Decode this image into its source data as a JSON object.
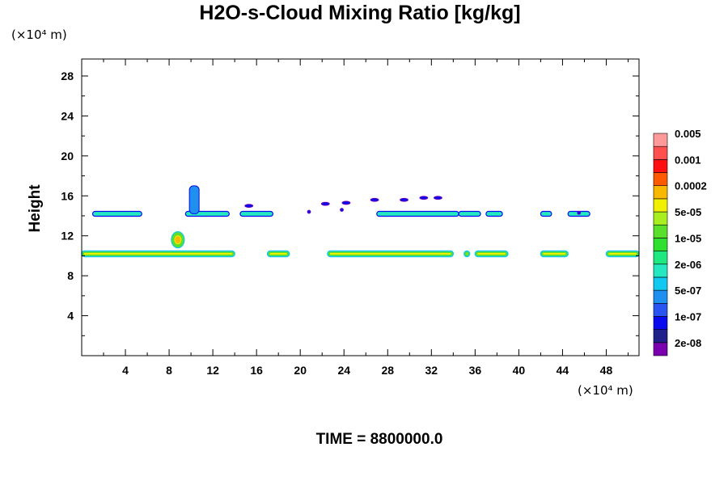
{
  "chart_data": {
    "type": "heatmap",
    "title": "H2O-s-Cloud Mixing Ratio [kg/kg]",
    "ylabel": "Height",
    "x_unit": "(×10⁴ m)",
    "y_unit": "(×10⁴ m)",
    "footer": "TIME = 8800000.0",
    "xlim": [
      0,
      51
    ],
    "ylim": [
      0,
      29.7
    ],
    "x_ticks": [
      4,
      8,
      12,
      16,
      20,
      24,
      28,
      32,
      36,
      40,
      44,
      48
    ],
    "y_ticks": [
      4,
      8,
      12,
      16,
      20,
      24,
      28
    ],
    "colorbar": {
      "colors": [
        "#7a00b0",
        "#20208a",
        "#0a0aee",
        "#2a55f0",
        "#1f8ff0",
        "#10c8f0",
        "#25e8c0",
        "#20e880",
        "#30e030",
        "#5ae02a",
        "#a8ee20",
        "#f0f000",
        "#f8b800",
        "#ff5a00",
        "#ff1010",
        "#ff5050",
        "#ff9a9a"
      ],
      "labels": [
        "2e-08",
        "1e-07",
        "5e-07",
        "2e-06",
        "1e-05",
        "5e-05",
        "0.0002",
        "0.001",
        "0.005"
      ]
    },
    "cloud_layers": [
      {
        "name": "lower",
        "height": 10.2,
        "segments": [
          [
            0,
            14
          ],
          [
            17,
            19
          ],
          [
            22.5,
            34
          ],
          [
            35,
            35.5
          ],
          [
            36,
            39
          ],
          [
            42,
            44.5
          ],
          [
            48,
            51
          ]
        ]
      },
      {
        "name": "upper",
        "height": 14.2,
        "segments": [
          [
            1,
            5.5
          ],
          [
            9.5,
            13.5
          ],
          [
            14.5,
            17.5
          ],
          [
            27,
            34.5
          ],
          [
            34.5,
            36.5
          ],
          [
            37,
            38.5
          ],
          [
            42,
            43
          ],
          [
            44.5,
            46.5
          ]
        ]
      },
      {
        "name": "tower",
        "x": 10.3,
        "height_range": [
          11,
          17
        ],
        "peak_class": "0.0002"
      }
    ],
    "grid": false
  }
}
